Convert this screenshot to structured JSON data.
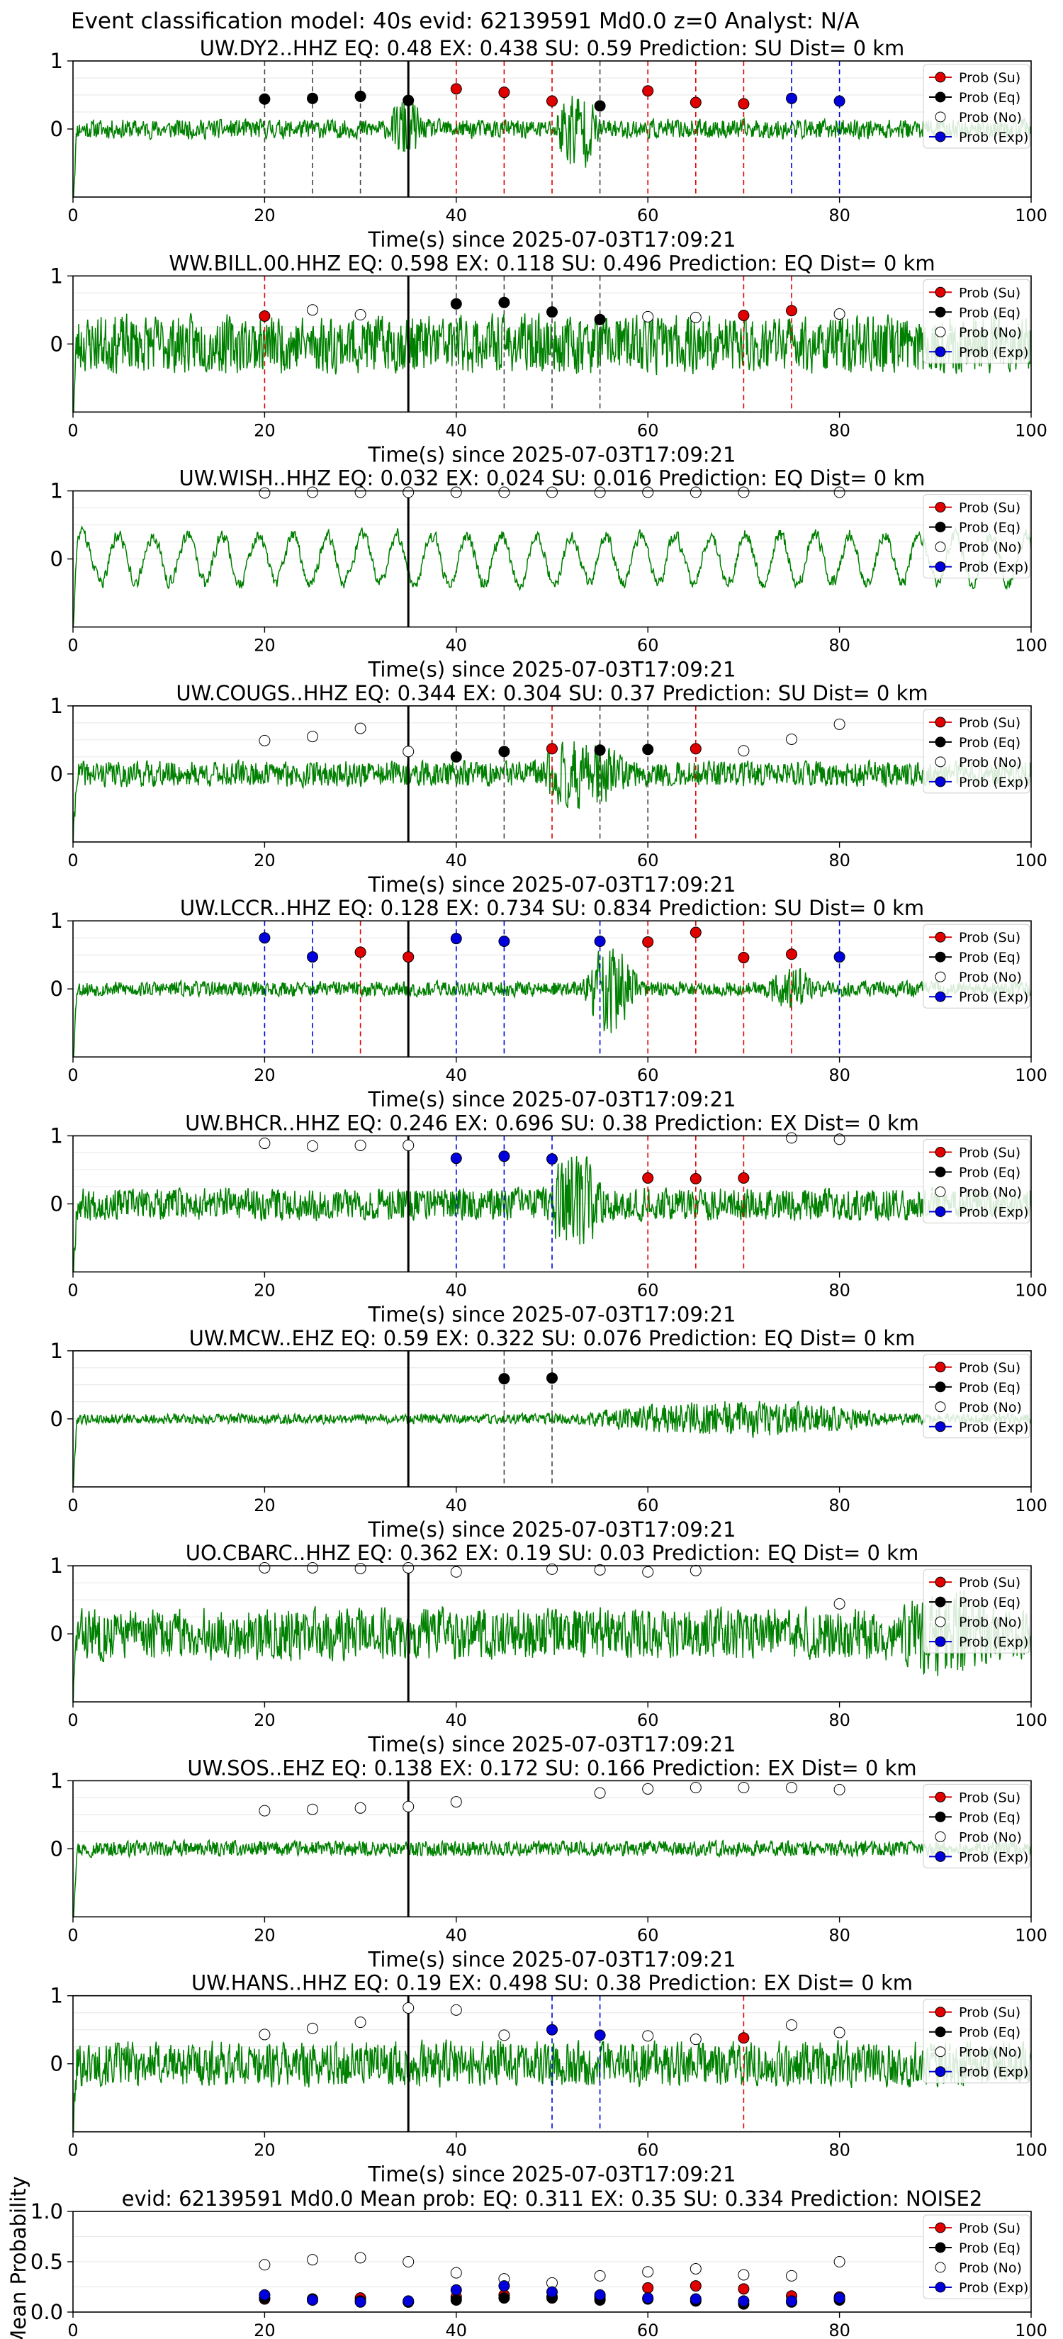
{
  "header": {
    "title": "Event classification model: 40s evid: 62139591 Md0.0 z=0 Analyst: N/A"
  },
  "legend_labels": [
    "Prob (Su)",
    "Prob (Eq)",
    "Prob (No)",
    "Prob (Exp)"
  ],
  "colors": {
    "su": "#e00000",
    "eq": "#000000",
    "no": "#ffffff",
    "exp": "#0000dd",
    "trace": "#008000",
    "p_pick": "#000000"
  },
  "chart_data": [
    {
      "type": "line",
      "station": "UW.DY2..HHZ",
      "title": "UW.DY2..HHZ   EQ: 0.48  EX: 0.438  SU: 0.59   Prediction: SU    Dist= 0 km",
      "xlabel": "Time(s) since 2025-07-03T17:09:21",
      "xlim": [
        0,
        100
      ],
      "ylim": [
        -1,
        1
      ],
      "xticks": [
        "0",
        "20",
        "40",
        "60",
        "80",
        "100"
      ],
      "yticks": [
        "1",
        "0"
      ],
      "pick_time": 35,
      "seed": 11,
      "amplitude": 0.15,
      "burst": {
        "start": 33,
        "end": 38,
        "scale": 3.5
      },
      "burst2": {
        "start": 50,
        "end": 57,
        "scale": 4.5
      },
      "points": [
        {
          "t": 20,
          "p": 0.44,
          "cls": "eq"
        },
        {
          "t": 25,
          "p": 0.45,
          "cls": "eq"
        },
        {
          "t": 30,
          "p": 0.48,
          "cls": "eq"
        },
        {
          "t": 35,
          "p": 0.42,
          "cls": "eq"
        },
        {
          "t": 40,
          "p": 0.59,
          "cls": "su"
        },
        {
          "t": 45,
          "p": 0.54,
          "cls": "su"
        },
        {
          "t": 50,
          "p": 0.41,
          "cls": "su"
        },
        {
          "t": 55,
          "p": 0.34,
          "cls": "eq"
        },
        {
          "t": 60,
          "p": 0.56,
          "cls": "su"
        },
        {
          "t": 65,
          "p": 0.39,
          "cls": "su"
        },
        {
          "t": 70,
          "p": 0.37,
          "cls": "su"
        },
        {
          "t": 75,
          "p": 0.45,
          "cls": "exp"
        },
        {
          "t": 80,
          "p": 0.41,
          "cls": "exp"
        }
      ]
    },
    {
      "type": "line",
      "station": "WW.BILL.00.HHZ",
      "title": "WW.BILL.00.HHZ   EQ: 0.598  EX: 0.118  SU: 0.496   Prediction: EQ    Dist= 0 km",
      "xlabel": "Time(s) since 2025-07-03T17:09:21",
      "xlim": [
        0,
        100
      ],
      "ylim": [
        -1,
        1
      ],
      "xticks": [
        "0",
        "20",
        "40",
        "60",
        "80",
        "100"
      ],
      "yticks": [
        "1",
        "0"
      ],
      "pick_time": 35,
      "seed": 23,
      "amplitude": 0.45,
      "burst": null,
      "burst2": null,
      "points": [
        {
          "t": 20,
          "p": 0.41,
          "cls": "su"
        },
        {
          "t": 25,
          "p": 0.5,
          "cls": "no"
        },
        {
          "t": 30,
          "p": 0.43,
          "cls": "no"
        },
        {
          "t": 40,
          "p": 0.59,
          "cls": "eq"
        },
        {
          "t": 45,
          "p": 0.61,
          "cls": "eq"
        },
        {
          "t": 50,
          "p": 0.47,
          "cls": "eq"
        },
        {
          "t": 55,
          "p": 0.36,
          "cls": "eq"
        },
        {
          "t": 60,
          "p": 0.4,
          "cls": "no"
        },
        {
          "t": 65,
          "p": 0.39,
          "cls": "no"
        },
        {
          "t": 70,
          "p": 0.42,
          "cls": "su"
        },
        {
          "t": 75,
          "p": 0.49,
          "cls": "su"
        },
        {
          "t": 80,
          "p": 0.44,
          "cls": "no"
        }
      ]
    },
    {
      "type": "line",
      "station": "UW.WISH..HHZ",
      "title": "UW.WISH..HHZ   EQ: 0.032  EX: 0.024  SU: 0.016   Prediction: EQ    Dist= 0 km",
      "xlabel": "Time(s) since 2025-07-03T17:09:21",
      "xlim": [
        0,
        100
      ],
      "ylim": [
        -1,
        1
      ],
      "xticks": [
        "0",
        "20",
        "40",
        "60",
        "80",
        "100"
      ],
      "yticks": [
        "1",
        "0"
      ],
      "pick_time": 35,
      "seed": 37,
      "amplitude": 0.35,
      "burst": null,
      "burst2": null,
      "smooth": true,
      "points": [
        {
          "t": 20,
          "p": 0.97,
          "cls": "no"
        },
        {
          "t": 25,
          "p": 0.98,
          "cls": "no"
        },
        {
          "t": 30,
          "p": 0.98,
          "cls": "no"
        },
        {
          "t": 35,
          "p": 0.98,
          "cls": "no"
        },
        {
          "t": 40,
          "p": 0.98,
          "cls": "no"
        },
        {
          "t": 45,
          "p": 0.98,
          "cls": "no"
        },
        {
          "t": 50,
          "p": 0.98,
          "cls": "no"
        },
        {
          "t": 55,
          "p": 0.98,
          "cls": "no"
        },
        {
          "t": 60,
          "p": 0.98,
          "cls": "no"
        },
        {
          "t": 65,
          "p": 0.98,
          "cls": "no"
        },
        {
          "t": 70,
          "p": 0.98,
          "cls": "no"
        },
        {
          "t": 80,
          "p": 0.98,
          "cls": "no"
        }
      ]
    },
    {
      "type": "line",
      "station": "UW.COUGS..HHZ",
      "title": "UW.COUGS..HHZ   EQ: 0.344  EX: 0.304  SU: 0.37   Prediction: SU    Dist= 0 km",
      "xlabel": "Time(s) since 2025-07-03T17:09:21",
      "xlim": [
        0,
        100
      ],
      "ylim": [
        -1,
        1
      ],
      "xticks": [
        "0",
        "20",
        "40",
        "60",
        "80",
        "100"
      ],
      "yticks": [
        "1",
        "0"
      ],
      "pick_time": 35,
      "seed": 41,
      "amplitude": 0.2,
      "burst": {
        "start": 48,
        "end": 62,
        "scale": 2.8
      },
      "burst2": null,
      "points": [
        {
          "t": 20,
          "p": 0.49,
          "cls": "no"
        },
        {
          "t": 25,
          "p": 0.55,
          "cls": "no"
        },
        {
          "t": 30,
          "p": 0.67,
          "cls": "no"
        },
        {
          "t": 35,
          "p": 0.33,
          "cls": "no"
        },
        {
          "t": 40,
          "p": 0.25,
          "cls": "eq"
        },
        {
          "t": 45,
          "p": 0.33,
          "cls": "eq"
        },
        {
          "t": 50,
          "p": 0.37,
          "cls": "su"
        },
        {
          "t": 55,
          "p": 0.35,
          "cls": "eq"
        },
        {
          "t": 60,
          "p": 0.36,
          "cls": "eq"
        },
        {
          "t": 65,
          "p": 0.37,
          "cls": "su"
        },
        {
          "t": 70,
          "p": 0.34,
          "cls": "no"
        },
        {
          "t": 75,
          "p": 0.51,
          "cls": "no"
        },
        {
          "t": 80,
          "p": 0.73,
          "cls": "no"
        }
      ]
    },
    {
      "type": "line",
      "station": "UW.LCCR..HHZ",
      "title": "UW.LCCR..HHZ   EQ: 0.128  EX: 0.734  SU: 0.834   Prediction: SU    Dist= 0 km",
      "xlabel": "Time(s) since 2025-07-03T17:09:21",
      "xlim": [
        0,
        100
      ],
      "ylim": [
        -1,
        1
      ],
      "xticks": [
        "0",
        "20",
        "40",
        "60",
        "80",
        "100"
      ],
      "yticks": [
        "1",
        "0"
      ],
      "pick_time": 35,
      "seed": 53,
      "amplitude": 0.12,
      "burst": {
        "start": 53,
        "end": 62,
        "scale": 6
      },
      "burst2": {
        "start": 72,
        "end": 80,
        "scale": 3
      },
      "points": [
        {
          "t": 20,
          "p": 0.75,
          "cls": "exp"
        },
        {
          "t": 25,
          "p": 0.47,
          "cls": "exp"
        },
        {
          "t": 30,
          "p": 0.54,
          "cls": "su"
        },
        {
          "t": 35,
          "p": 0.47,
          "cls": "su"
        },
        {
          "t": 40,
          "p": 0.74,
          "cls": "exp"
        },
        {
          "t": 45,
          "p": 0.7,
          "cls": "exp"
        },
        {
          "t": 55,
          "p": 0.7,
          "cls": "exp"
        },
        {
          "t": 60,
          "p": 0.69,
          "cls": "su"
        },
        {
          "t": 65,
          "p": 0.83,
          "cls": "su"
        },
        {
          "t": 70,
          "p": 0.46,
          "cls": "su"
        },
        {
          "t": 75,
          "p": 0.51,
          "cls": "su"
        },
        {
          "t": 80,
          "p": 0.47,
          "cls": "exp"
        }
      ]
    },
    {
      "type": "line",
      "station": "UW.BHCR..HHZ",
      "title": "UW.BHCR..HHZ   EQ: 0.246  EX: 0.696  SU: 0.38   Prediction: EX    Dist= 0 km",
      "xlabel": "Time(s) since 2025-07-03T17:09:21",
      "xlim": [
        0,
        100
      ],
      "ylim": [
        -1,
        1
      ],
      "xticks": [
        "0",
        "20",
        "40",
        "60",
        "80",
        "100"
      ],
      "yticks": [
        "1",
        "0"
      ],
      "pick_time": 35,
      "seed": 67,
      "amplitude": 0.25,
      "burst": {
        "start": 49,
        "end": 58,
        "scale": 3.2
      },
      "burst2": null,
      "points": [
        {
          "t": 20,
          "p": 0.89,
          "cls": "no"
        },
        {
          "t": 25,
          "p": 0.85,
          "cls": "no"
        },
        {
          "t": 30,
          "p": 0.86,
          "cls": "no"
        },
        {
          "t": 35,
          "p": 0.86,
          "cls": "no"
        },
        {
          "t": 40,
          "p": 0.67,
          "cls": "exp"
        },
        {
          "t": 45,
          "p": 0.7,
          "cls": "exp"
        },
        {
          "t": 50,
          "p": 0.66,
          "cls": "exp"
        },
        {
          "t": 60,
          "p": 0.38,
          "cls": "su"
        },
        {
          "t": 65,
          "p": 0.37,
          "cls": "su"
        },
        {
          "t": 70,
          "p": 0.38,
          "cls": "su"
        },
        {
          "t": 75,
          "p": 0.97,
          "cls": "no"
        },
        {
          "t": 80,
          "p": 0.95,
          "cls": "no"
        }
      ]
    },
    {
      "type": "line",
      "station": "UW.MCW..EHZ",
      "title": "UW.MCW..EHZ   EQ: 0.59  EX: 0.322  SU: 0.076   Prediction: EQ    Dist= 0 km",
      "xlabel": "Time(s) since 2025-07-03T17:09:21",
      "xlim": [
        0,
        100
      ],
      "ylim": [
        -1,
        1
      ],
      "xticks": [
        "0",
        "20",
        "40",
        "60",
        "80",
        "100"
      ],
      "yticks": [
        "1",
        "0"
      ],
      "pick_time": 35,
      "seed": 79,
      "amplitude": 0.08,
      "burst": {
        "start": 52,
        "end": 100,
        "scale": 3.5
      },
      "burst2": null,
      "points": [
        {
          "t": 45,
          "p": 0.59,
          "cls": "eq"
        },
        {
          "t": 50,
          "p": 0.6,
          "cls": "eq"
        }
      ]
    },
    {
      "type": "line",
      "station": "UO.CBARC..HHZ",
      "title": "UO.CBARC..HHZ   EQ: 0.362  EX: 0.19  SU: 0.03   Prediction: EQ    Dist= 0 km",
      "xlabel": "Time(s) since 2025-07-03T17:09:21",
      "xlim": [
        0,
        100
      ],
      "ylim": [
        -1,
        1
      ],
      "xticks": [
        "0",
        "20",
        "40",
        "60",
        "80",
        "100"
      ],
      "yticks": [
        "1",
        "0"
      ],
      "pick_time": 35,
      "seed": 83,
      "amplitude": 0.4,
      "burst": {
        "start": 86,
        "end": 100,
        "scale": 1.8
      },
      "burst2": null,
      "points": [
        {
          "t": 20,
          "p": 0.97,
          "cls": "no"
        },
        {
          "t": 25,
          "p": 0.97,
          "cls": "no"
        },
        {
          "t": 30,
          "p": 0.96,
          "cls": "no"
        },
        {
          "t": 35,
          "p": 0.97,
          "cls": "no"
        },
        {
          "t": 40,
          "p": 0.91,
          "cls": "no"
        },
        {
          "t": 50,
          "p": 0.95,
          "cls": "no"
        },
        {
          "t": 55,
          "p": 0.94,
          "cls": "no"
        },
        {
          "t": 60,
          "p": 0.91,
          "cls": "no"
        },
        {
          "t": 65,
          "p": 0.93,
          "cls": "no"
        },
        {
          "t": 80,
          "p": 0.44,
          "cls": "no"
        }
      ]
    },
    {
      "type": "line",
      "station": "UW.SOS..EHZ",
      "title": "UW.SOS..EHZ   EQ: 0.138  EX: 0.172  SU: 0.166   Prediction: EX    Dist= 0 km",
      "xlabel": "Time(s) since 2025-07-03T17:09:21",
      "xlim": [
        0,
        100
      ],
      "ylim": [
        -1,
        1
      ],
      "xticks": [
        "0",
        "20",
        "40",
        "60",
        "80",
        "100"
      ],
      "yticks": [
        "1",
        "0"
      ],
      "pick_time": 35,
      "seed": 97,
      "amplitude": 0.12,
      "burst": null,
      "burst2": null,
      "points": [
        {
          "t": 20,
          "p": 0.56,
          "cls": "no"
        },
        {
          "t": 25,
          "p": 0.58,
          "cls": "no"
        },
        {
          "t": 30,
          "p": 0.6,
          "cls": "no"
        },
        {
          "t": 35,
          "p": 0.62,
          "cls": "no"
        },
        {
          "t": 40,
          "p": 0.69,
          "cls": "no"
        },
        {
          "t": 55,
          "p": 0.82,
          "cls": "no"
        },
        {
          "t": 60,
          "p": 0.88,
          "cls": "no"
        },
        {
          "t": 65,
          "p": 0.9,
          "cls": "no"
        },
        {
          "t": 70,
          "p": 0.9,
          "cls": "no"
        },
        {
          "t": 75,
          "p": 0.9,
          "cls": "no"
        },
        {
          "t": 80,
          "p": 0.87,
          "cls": "no"
        }
      ]
    },
    {
      "type": "line",
      "station": "UW.HANS..HHZ",
      "title": "UW.HANS..HHZ   EQ: 0.19  EX: 0.498  SU: 0.38   Prediction: EX    Dist= 0 km",
      "xlabel": "Time(s) since 2025-07-03T17:09:21",
      "xlim": [
        0,
        100
      ],
      "ylim": [
        -1,
        1
      ],
      "xticks": [
        "0",
        "20",
        "40",
        "60",
        "80",
        "100"
      ],
      "yticks": [
        "1",
        "0"
      ],
      "pick_time": 35,
      "seed": 101,
      "amplitude": 0.35,
      "burst": null,
      "burst2": null,
      "points": [
        {
          "t": 20,
          "p": 0.43,
          "cls": "no"
        },
        {
          "t": 25,
          "p": 0.52,
          "cls": "no"
        },
        {
          "t": 30,
          "p": 0.61,
          "cls": "no"
        },
        {
          "t": 35,
          "p": 0.82,
          "cls": "no"
        },
        {
          "t": 40,
          "p": 0.79,
          "cls": "no"
        },
        {
          "t": 45,
          "p": 0.42,
          "cls": "no"
        },
        {
          "t": 50,
          "p": 0.5,
          "cls": "exp"
        },
        {
          "t": 55,
          "p": 0.42,
          "cls": "exp"
        },
        {
          "t": 60,
          "p": 0.41,
          "cls": "no"
        },
        {
          "t": 65,
          "p": 0.36,
          "cls": "no"
        },
        {
          "t": 70,
          "p": 0.38,
          "cls": "su"
        },
        {
          "t": 75,
          "p": 0.57,
          "cls": "no"
        },
        {
          "t": 80,
          "p": 0.46,
          "cls": "no"
        }
      ]
    },
    {
      "type": "scatter",
      "station": "mean",
      "title": "evid: 62139591  Md0.0   Mean prob:   EQ: 0.311  EX: 0.35  SU: 0.334   Prediction: NOISE2",
      "ylabel": "Mean Probability",
      "xlim": [
        0,
        100
      ],
      "ylim": [
        0,
        1
      ],
      "xticks": [
        "0",
        "20",
        "40",
        "60",
        "80",
        "100"
      ],
      "yticks": [
        "1.0",
        "0.5",
        "0.0"
      ],
      "series": [
        {
          "name": "Prob (Su)",
          "cls": "su",
          "x": [
            20,
            25,
            30,
            35,
            40,
            45,
            50,
            55,
            60,
            65,
            70,
            75,
            80
          ],
          "y": [
            0.13,
            0.12,
            0.14,
            0.1,
            0.15,
            0.17,
            0.15,
            0.15,
            0.24,
            0.26,
            0.23,
            0.16,
            0.15
          ]
        },
        {
          "name": "Prob (Eq)",
          "cls": "eq",
          "x": [
            20,
            25,
            30,
            35,
            40,
            45,
            50,
            55,
            60,
            65,
            70,
            75,
            80
          ],
          "y": [
            0.14,
            0.13,
            0.11,
            0.1,
            0.12,
            0.14,
            0.14,
            0.12,
            0.13,
            0.11,
            0.08,
            0.1,
            0.12
          ]
        },
        {
          "name": "Prob (No)",
          "cls": "no",
          "x": [
            20,
            25,
            30,
            35,
            40,
            45,
            50,
            55,
            60,
            65,
            70,
            75,
            80
          ],
          "y": [
            0.47,
            0.52,
            0.54,
            0.5,
            0.39,
            0.33,
            0.29,
            0.36,
            0.4,
            0.43,
            0.37,
            0.36,
            0.5
          ]
        },
        {
          "name": "Prob (Exp)",
          "cls": "exp",
          "x": [
            20,
            25,
            30,
            35,
            40,
            45,
            50,
            55,
            60,
            65,
            70,
            75,
            80
          ],
          "y": [
            0.17,
            0.12,
            0.1,
            0.11,
            0.22,
            0.26,
            0.2,
            0.17,
            0.14,
            0.13,
            0.11,
            0.11,
            0.14
          ]
        }
      ]
    }
  ]
}
